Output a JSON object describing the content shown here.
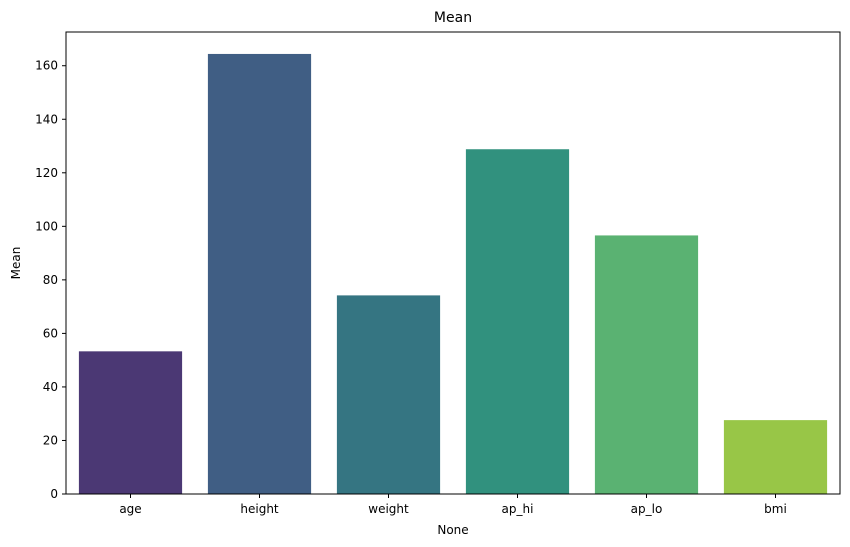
{
  "chart_data": {
    "type": "bar",
    "title": "Mean",
    "xlabel": "None",
    "ylabel": "Mean",
    "categories": [
      "age",
      "height",
      "weight",
      "ap_hi",
      "ap_lo",
      "bmi"
    ],
    "values": [
      53.3,
      164.4,
      74.2,
      128.8,
      96.6,
      27.6
    ],
    "colors": [
      "#4b3874",
      "#405e84",
      "#357582",
      "#31917e",
      "#5ab272",
      "#98c647"
    ],
    "ylim": [
      0,
      172.6
    ],
    "yticks": [
      0,
      20,
      40,
      60,
      80,
      100,
      120,
      140,
      160
    ],
    "grid": false
  }
}
